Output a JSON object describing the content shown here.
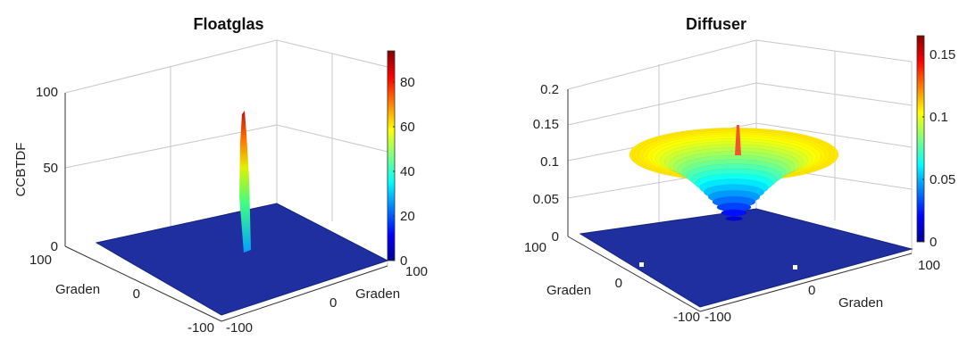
{
  "chart_data": [
    {
      "type": "surface3d",
      "title": "Floatglas",
      "zlabel": "CCBTDF",
      "xlabel": "Graden",
      "ylabel": "Graden",
      "xlim": [
        -100,
        100
      ],
      "ylim": [
        -100,
        100
      ],
      "zlim": [
        0,
        100
      ],
      "x_ticks": [
        "100",
        "0",
        "-100"
      ],
      "y_ticks": [
        "-100",
        "0",
        "100"
      ],
      "z_ticks": [
        "0",
        "50",
        "100"
      ],
      "colorbar": {
        "min": 0,
        "max": 94,
        "ticks": [
          "0",
          "20",
          "40",
          "60",
          "80"
        ]
      },
      "grid": true,
      "floor_value": 0,
      "peak": {
        "x": 0,
        "y": 0,
        "value": 94
      }
    },
    {
      "type": "surface3d",
      "title": "Diffuser",
      "xlabel": "Graden",
      "ylabel": "Graden",
      "xlim": [
        -100,
        100
      ],
      "ylim": [
        -100,
        100
      ],
      "zlim": [
        0,
        0.2
      ],
      "x_ticks": [
        "100",
        "0",
        "-100"
      ],
      "y_ticks": [
        "-100",
        "0",
        "Graden",
        "100"
      ],
      "z_ticks": [
        "0",
        "0.05",
        "0.1",
        "0.15",
        "0.2"
      ],
      "colorbar": {
        "min": 0,
        "max": 0.165,
        "ticks": [
          "0",
          "0.05",
          "0.1",
          "0.15"
        ]
      },
      "grid": true,
      "floor_value": 0,
      "dome_max": 0.1,
      "peak": {
        "x": 0,
        "y": 0,
        "value": 0.12
      }
    }
  ]
}
